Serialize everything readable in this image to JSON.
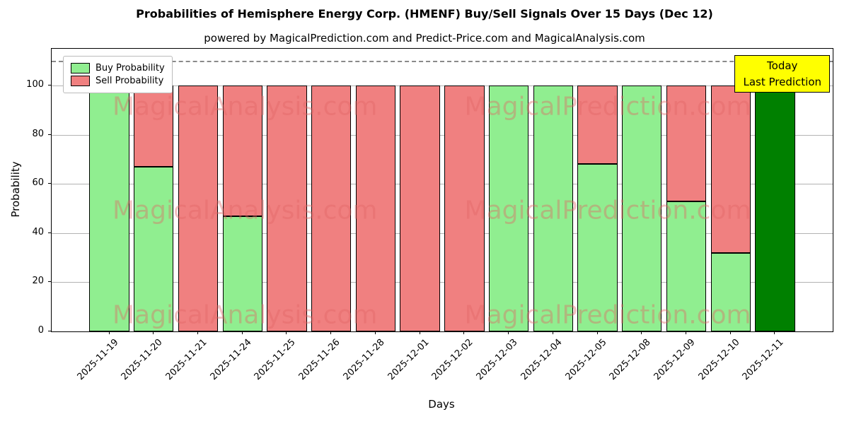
{
  "title": "Probabilities of Hemisphere Energy Corp. (HMENF) Buy/Sell Signals Over 15 Days (Dec 12)",
  "subtitle": "powered by MagicalPrediction.com and Predict-Price.com and MagicalAnalysis.com",
  "legend": {
    "buy_label": "Buy Probability",
    "sell_label": "Sell Probability"
  },
  "annotation": {
    "line1": "Today",
    "line2": "Last Prediction"
  },
  "watermarks": [
    "MagicalAnalysis.com",
    "MagicalPrediction.com"
  ],
  "colors": {
    "buy": "#90ee90",
    "sell": "#f08080",
    "today": "#008000",
    "annotation_bg": "#ffff00",
    "watermark": "rgba(225,100,100,0.40)",
    "grid": "#b3b3b3",
    "dashed_line": "#8a8a8a"
  },
  "chart_data": {
    "type": "bar",
    "stacked": true,
    "title": "Probabilities of Hemisphere Energy Corp. (HMENF) Buy/Sell Signals Over 15 Days (Dec 12)",
    "xlabel": "Days",
    "ylabel": "Probability",
    "ylim": [
      0,
      115
    ],
    "yticks": [
      0,
      20,
      40,
      60,
      80,
      100
    ],
    "dashed_line_y": 110,
    "grid": "horizontal",
    "legend_position": "upper-left",
    "categories": [
      "2025-11-19",
      "2025-11-20",
      "2025-11-21",
      "2025-11-24",
      "2025-11-25",
      "2025-11-26",
      "2025-11-28",
      "2025-12-01",
      "2025-12-02",
      "2025-12-03",
      "2025-12-04",
      "2025-12-05",
      "2025-12-08",
      "2025-12-09",
      "2025-12-10",
      "2025-12-11"
    ],
    "series": [
      {
        "name": "Buy Probability",
        "color": "#90ee90",
        "values": [
          100,
          67,
          0,
          47,
          0,
          0,
          0,
          0,
          0,
          100,
          100,
          68,
          100,
          53,
          32,
          100
        ]
      },
      {
        "name": "Sell Probability",
        "color": "#f08080",
        "values": [
          0,
          33,
          100,
          53,
          100,
          100,
          100,
          100,
          100,
          0,
          0,
          32,
          0,
          47,
          68,
          0
        ]
      }
    ],
    "today_index": 15,
    "today_color": "#008000"
  }
}
